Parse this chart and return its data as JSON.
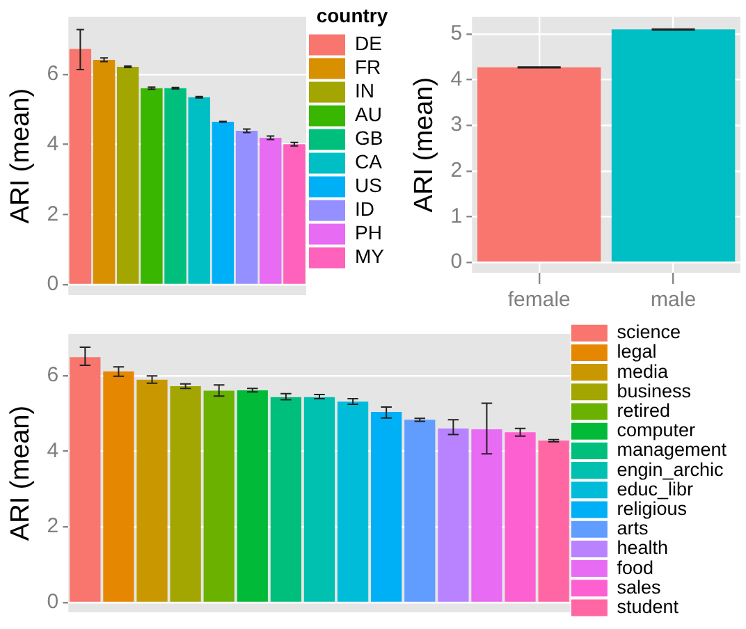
{
  "chart_data": [
    {
      "type": "bar",
      "ylabel": "ARI (mean)",
      "legend_title": "country",
      "legend": "right",
      "tick_labels": "y",
      "grid": "y",
      "ylim": [
        -0.3,
        7.65
      ],
      "yticks": [
        0,
        2,
        4,
        6
      ],
      "categories": [
        null,
        null,
        null,
        null,
        null,
        null,
        null,
        null,
        null,
        null
      ],
      "series": [
        {
          "name": "DE",
          "color": "#f8766d",
          "values": [
            6.73,
            null,
            null,
            null,
            null,
            null,
            null,
            null,
            null,
            null
          ],
          "errors": [
            [
              6.14,
              7.28
            ],
            null,
            null,
            null,
            null,
            null,
            null,
            null,
            null,
            null
          ]
        },
        {
          "name": "FR",
          "color": "#d89000",
          "values": [
            null,
            6.42,
            null,
            null,
            null,
            null,
            null,
            null,
            null,
            null
          ],
          "errors": [
            null,
            0.05,
            null,
            null,
            null,
            null,
            null,
            null,
            null,
            null
          ]
        },
        {
          "name": "IN",
          "color": "#a3a500",
          "values": [
            null,
            null,
            6.22,
            null,
            null,
            null,
            null,
            null,
            null,
            null
          ],
          "errors": [
            null,
            null,
            0.02,
            null,
            null,
            null,
            null,
            null,
            null,
            null
          ]
        },
        {
          "name": "AU",
          "color": "#39b600",
          "values": [
            null,
            null,
            null,
            5.61,
            null,
            null,
            null,
            null,
            null,
            null
          ],
          "errors": [
            null,
            null,
            null,
            0.03,
            null,
            null,
            null,
            null,
            null,
            null
          ]
        },
        {
          "name": "GB",
          "color": "#00bf7d",
          "values": [
            null,
            null,
            null,
            null,
            5.61,
            null,
            null,
            null,
            null,
            null
          ],
          "errors": [
            null,
            null,
            null,
            null,
            0.02,
            null,
            null,
            null,
            null,
            null
          ]
        },
        {
          "name": "CA",
          "color": "#00bfc4",
          "values": [
            null,
            null,
            null,
            null,
            null,
            5.35,
            null,
            null,
            null,
            null
          ],
          "errors": [
            null,
            null,
            null,
            null,
            null,
            0.02,
            null,
            null,
            null,
            null
          ]
        },
        {
          "name": "US",
          "color": "#00b0f6",
          "values": [
            null,
            null,
            null,
            null,
            null,
            null,
            4.65,
            null,
            null,
            null
          ],
          "errors": [
            null,
            null,
            null,
            null,
            null,
            null,
            0.01,
            null,
            null,
            null
          ]
        },
        {
          "name": "ID",
          "color": "#9590ff",
          "values": [
            null,
            null,
            null,
            null,
            null,
            null,
            null,
            4.39,
            null,
            null
          ],
          "errors": [
            null,
            null,
            null,
            null,
            null,
            null,
            null,
            0.05,
            null,
            null
          ]
        },
        {
          "name": "PH",
          "color": "#e76bf3",
          "values": [
            null,
            null,
            null,
            null,
            null,
            null,
            null,
            null,
            4.19,
            null
          ],
          "errors": [
            null,
            null,
            null,
            null,
            null,
            null,
            null,
            null,
            0.05,
            null
          ]
        },
        {
          "name": "MY",
          "color": "#ff62bc",
          "values": [
            null,
            null,
            null,
            null,
            null,
            null,
            null,
            null,
            null,
            4.01
          ],
          "errors": [
            null,
            null,
            null,
            null,
            null,
            null,
            null,
            null,
            null,
            0.05
          ]
        }
      ]
    },
    {
      "type": "bar",
      "ylabel": "ARI (mean)",
      "grid": true,
      "ylim": [
        -0.23,
        5.38
      ],
      "yticks": [
        0,
        1,
        2,
        3,
        4,
        5
      ],
      "categories": [
        "female",
        "male"
      ],
      "series": [
        {
          "colors": [
            "#f8766d",
            "#00bfc4"
          ],
          "values": [
            4.27,
            5.1
          ],
          "errors": [
            0.01,
            0.01
          ]
        }
      ]
    },
    {
      "type": "bar",
      "ylabel": "ARI (mean)",
      "legend": "right",
      "tick_labels": "y",
      "grid": "y",
      "ylim": [
        -0.26,
        7.1
      ],
      "yticks": [
        0,
        2,
        4,
        6
      ],
      "categories": [
        null,
        null,
        null,
        null,
        null,
        null,
        null,
        null,
        null,
        null,
        null,
        null,
        null,
        null,
        null
      ],
      "series": [
        {
          "name": "science",
          "color": "#f8766d",
          "values": [
            6.49,
            null,
            null,
            null,
            null,
            null,
            null,
            null,
            null,
            null,
            null,
            null,
            null,
            null,
            null
          ],
          "errors": [
            [
              6.27,
              6.75
            ],
            null,
            null,
            null,
            null,
            null,
            null,
            null,
            null,
            null,
            null,
            null,
            null,
            null,
            null
          ]
        },
        {
          "name": "legal",
          "color": "#e58700",
          "values": [
            null,
            6.11,
            null,
            null,
            null,
            null,
            null,
            null,
            null,
            null,
            null,
            null,
            null,
            null,
            null
          ],
          "errors": [
            null,
            [
              5.98,
              6.23
            ],
            null,
            null,
            null,
            null,
            null,
            null,
            null,
            null,
            null,
            null,
            null,
            null,
            null
          ]
        },
        {
          "name": "media",
          "color": "#c99800",
          "values": [
            null,
            null,
            5.89,
            null,
            null,
            null,
            null,
            null,
            null,
            null,
            null,
            null,
            null,
            null,
            null
          ],
          "errors": [
            null,
            null,
            [
              5.8,
              5.99
            ],
            null,
            null,
            null,
            null,
            null,
            null,
            null,
            null,
            null,
            null,
            null,
            null
          ]
        },
        {
          "name": "business",
          "color": "#a3a500",
          "values": [
            null,
            null,
            null,
            5.72,
            null,
            null,
            null,
            null,
            null,
            null,
            null,
            null,
            null,
            null,
            null
          ],
          "errors": [
            null,
            null,
            null,
            [
              5.66,
              5.78
            ],
            null,
            null,
            null,
            null,
            null,
            null,
            null,
            null,
            null,
            null,
            null
          ]
        },
        {
          "name": "retired",
          "color": "#6bb100",
          "values": [
            null,
            null,
            null,
            null,
            5.6,
            null,
            null,
            null,
            null,
            null,
            null,
            null,
            null,
            null,
            null
          ],
          "errors": [
            null,
            null,
            null,
            null,
            [
              5.46,
              5.75
            ],
            null,
            null,
            null,
            null,
            null,
            null,
            null,
            null,
            null,
            null
          ]
        },
        {
          "name": "computer",
          "color": "#00ba38",
          "values": [
            null,
            null,
            null,
            null,
            null,
            5.61,
            null,
            null,
            null,
            null,
            null,
            null,
            null,
            null,
            null
          ],
          "errors": [
            null,
            null,
            null,
            null,
            null,
            [
              5.57,
              5.66
            ],
            null,
            null,
            null,
            null,
            null,
            null,
            null,
            null,
            null
          ]
        },
        {
          "name": "management",
          "color": "#00bf7d",
          "values": [
            null,
            null,
            null,
            null,
            null,
            null,
            5.43,
            null,
            null,
            null,
            null,
            null,
            null,
            null,
            null
          ],
          "errors": [
            null,
            null,
            null,
            null,
            null,
            null,
            [
              5.36,
              5.52
            ],
            null,
            null,
            null,
            null,
            null,
            null,
            null,
            null
          ]
        },
        {
          "name": "engin_archic",
          "color": "#00c0af",
          "values": [
            null,
            null,
            null,
            null,
            null,
            null,
            null,
            5.43,
            null,
            null,
            null,
            null,
            null,
            null,
            null
          ],
          "errors": [
            null,
            null,
            null,
            null,
            null,
            null,
            null,
            [
              5.39,
              5.5
            ],
            null,
            null,
            null,
            null,
            null,
            null,
            null
          ]
        },
        {
          "name": "educ_libr",
          "color": "#00bcd8",
          "values": [
            null,
            null,
            null,
            null,
            null,
            null,
            null,
            null,
            5.31,
            null,
            null,
            null,
            null,
            null,
            null
          ],
          "errors": [
            null,
            null,
            null,
            null,
            null,
            null,
            null,
            null,
            [
              5.24,
              5.39
            ],
            null,
            null,
            null,
            null,
            null,
            null
          ]
        },
        {
          "name": "religious",
          "color": "#00b0f6",
          "values": [
            null,
            null,
            null,
            null,
            null,
            null,
            null,
            null,
            null,
            5.04,
            null,
            null,
            null,
            null,
            null
          ],
          "errors": [
            null,
            null,
            null,
            null,
            null,
            null,
            null,
            null,
            null,
            [
              4.88,
              5.17
            ],
            null,
            null,
            null,
            null,
            null
          ]
        },
        {
          "name": "arts",
          "color": "#619cff",
          "values": [
            null,
            null,
            null,
            null,
            null,
            null,
            null,
            null,
            null,
            null,
            4.83,
            null,
            null,
            null,
            null
          ],
          "errors": [
            null,
            null,
            null,
            null,
            null,
            null,
            null,
            null,
            null,
            null,
            [
              4.79,
              4.87
            ],
            null,
            null,
            null,
            null
          ]
        },
        {
          "name": "health",
          "color": "#b983ff",
          "values": [
            null,
            null,
            null,
            null,
            null,
            null,
            null,
            null,
            null,
            null,
            null,
            4.6,
            null,
            null,
            null
          ],
          "errors": [
            null,
            null,
            null,
            null,
            null,
            null,
            null,
            null,
            null,
            null,
            null,
            [
              4.44,
              4.83
            ],
            null,
            null,
            null
          ]
        },
        {
          "name": "food",
          "color": "#e76bf3",
          "values": [
            null,
            null,
            null,
            null,
            null,
            null,
            null,
            null,
            null,
            null,
            null,
            null,
            4.58,
            null,
            null
          ],
          "errors": [
            null,
            null,
            null,
            null,
            null,
            null,
            null,
            null,
            null,
            null,
            null,
            null,
            [
              3.93,
              5.27
            ],
            null,
            null
          ]
        },
        {
          "name": "sales",
          "color": "#fd61d1",
          "values": [
            null,
            null,
            null,
            null,
            null,
            null,
            null,
            null,
            null,
            null,
            null,
            null,
            null,
            4.5,
            null
          ],
          "errors": [
            null,
            null,
            null,
            null,
            null,
            null,
            null,
            null,
            null,
            null,
            null,
            null,
            null,
            [
              4.4,
              4.6
            ],
            null
          ]
        },
        {
          "name": "student",
          "color": "#ff67a4",
          "values": [
            null,
            null,
            null,
            null,
            null,
            null,
            null,
            null,
            null,
            null,
            null,
            null,
            null,
            null,
            4.28
          ],
          "errors": [
            null,
            null,
            null,
            null,
            null,
            null,
            null,
            null,
            null,
            null,
            null,
            null,
            null,
            null,
            [
              4.25,
              4.31
            ]
          ]
        }
      ]
    }
  ]
}
